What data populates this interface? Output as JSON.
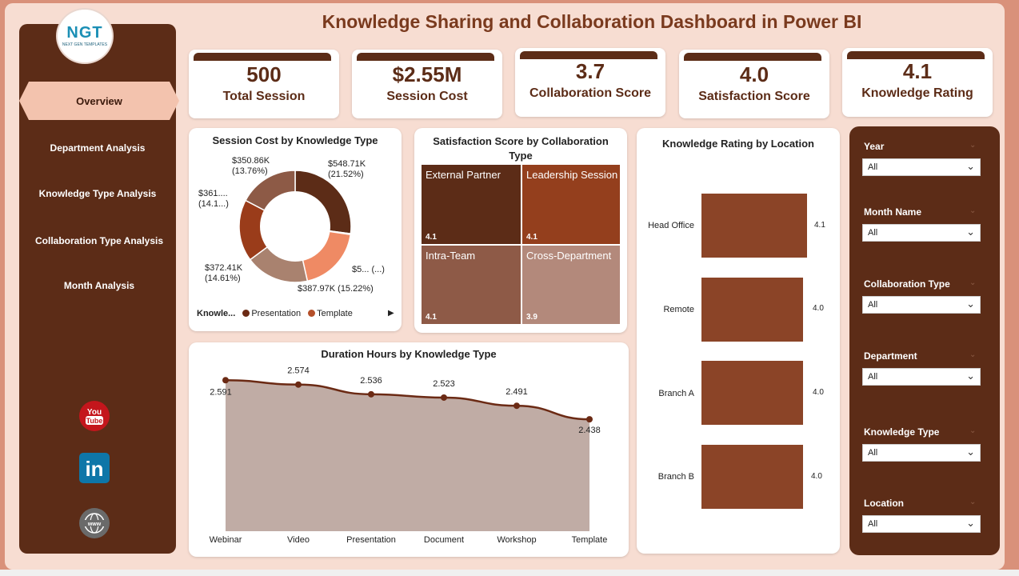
{
  "title": "Knowledge Sharing and Collaboration Dashboard in Power BI",
  "logo": {
    "text": "NGT",
    "subtext": "NEXT GEN TEMPLATES"
  },
  "nav": {
    "active": "Overview",
    "items": [
      "Department Analysis",
      "Knowledge Type Analysis",
      "Collaboration Type Analysis",
      "Month Analysis"
    ]
  },
  "social": {
    "youtube": "You Tube",
    "linkedin": "in",
    "web": "www"
  },
  "kpis": [
    {
      "value": "500",
      "label": "Total Session"
    },
    {
      "value": "$2.55M",
      "label": "Session Cost"
    },
    {
      "value": "3.7",
      "label": "Collaboration Score"
    },
    {
      "value": "4.0",
      "label": "Satisfaction Score"
    },
    {
      "value": "4.1",
      "label": "Knowledge Rating"
    }
  ],
  "donut": {
    "title": "Session Cost by Knowledge Type",
    "labels": {
      "top_right": [
        "$548.71K",
        "(21.52%)"
      ],
      "top_left": [
        "$350.86K",
        "(13.76%)"
      ],
      "mid_left": [
        "$361....",
        "(14.1...)"
      ],
      "right": "$5... (...)",
      "bottom_left": [
        "$372.41K",
        "(14.61%)"
      ],
      "bottom": "$387.97K (15.22%)"
    },
    "legend": {
      "title": "Knowle...",
      "items": [
        "Presentation",
        "Template"
      ]
    }
  },
  "treemap": {
    "title": "Satisfaction Score by Collaboration Type",
    "cells": [
      {
        "name": "External Partner",
        "value": "4.1"
      },
      {
        "name": "Leadership Session",
        "value": "4.1"
      },
      {
        "name": "Intra-Team",
        "value": "4.1"
      },
      {
        "name": "Cross-Department",
        "value": "3.9"
      }
    ]
  },
  "location_chart": {
    "title": "Knowledge Rating by Location",
    "bars": [
      {
        "label": "Head Office",
        "value": "4.1"
      },
      {
        "label": "Remote",
        "value": "4.0"
      },
      {
        "label": "Branch A",
        "value": "4.0"
      },
      {
        "label": "Branch B",
        "value": "4.0"
      }
    ]
  },
  "slicers": [
    {
      "label": "Year",
      "value": "All"
    },
    {
      "label": "Month Name",
      "value": "All"
    },
    {
      "label": "Collaboration Type",
      "value": "All"
    },
    {
      "label": "Department",
      "value": "All"
    },
    {
      "label": "Knowledge Type",
      "value": "All"
    },
    {
      "label": "Location",
      "value": "All"
    }
  ],
  "duration_chart": {
    "title": "Duration Hours by Knowledge Type"
  },
  "colors": {
    "dark_brown": "#5c2c17",
    "accent": "#f3c3ae",
    "line": "#6b2a14",
    "area": "#c0aca5"
  },
  "chart_data": [
    {
      "type": "pie",
      "title": "Session Cost by Knowledge Type",
      "slices": [
        {
          "value": 548.71,
          "percent": 21.52,
          "label": "$548.71K (21.52%)"
        },
        {
          "value": 5,
          "percent": 0,
          "label": "$5... (...)"
        },
        {
          "value": 387.97,
          "percent": 15.22,
          "label": "$387.97K (15.22%)"
        },
        {
          "value": 372.41,
          "percent": 14.61,
          "label": "$372.41K (14.61%)"
        },
        {
          "value": 361,
          "percent": 14.1,
          "label": "$361.... (14.1...)"
        },
        {
          "value": 350.86,
          "percent": 13.76,
          "label": "$350.86K (13.76%)"
        }
      ],
      "legend": [
        "Presentation",
        "Template"
      ]
    },
    {
      "type": "heatmap",
      "title": "Satisfaction Score by Collaboration Type",
      "categories": [
        "External Partner",
        "Leadership Session",
        "Intra-Team",
        "Cross-Department"
      ],
      "values": [
        4.1,
        4.1,
        4.1,
        3.9
      ]
    },
    {
      "type": "bar",
      "title": "Knowledge Rating by Location",
      "categories": [
        "Head Office",
        "Remote",
        "Branch A",
        "Branch B"
      ],
      "values": [
        4.1,
        4.0,
        4.0,
        4.0
      ]
    },
    {
      "type": "area",
      "title": "Duration Hours by Knowledge Type",
      "categories": [
        "Webinar",
        "Video",
        "Presentation",
        "Document",
        "Workshop",
        "Template"
      ],
      "values": [
        2.591,
        2.574,
        2.536,
        2.523,
        2.491,
        2.438
      ],
      "value_labels": [
        "2.591",
        "2.574",
        "2.536",
        "2.523",
        "2.491",
        "2.438"
      ],
      "ylim": [
        2.0,
        2.62
      ]
    }
  ]
}
